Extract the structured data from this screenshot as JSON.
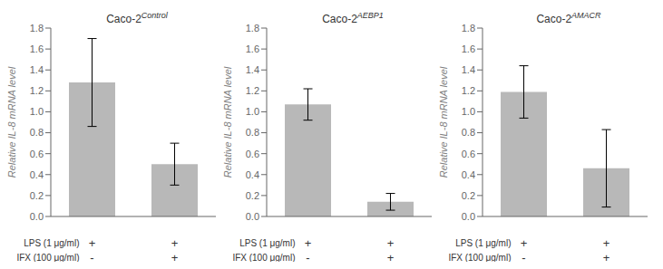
{
  "chart_data": [
    {
      "type": "bar",
      "title": "Caco-2",
      "title_superscript": "Control",
      "ylabel": "Relative IL-8 mRNA level",
      "categories": [
        null,
        null
      ],
      "values": [
        1.28,
        0.5
      ],
      "errors": [
        0.42,
        0.2
      ],
      "color": "#b8b8b8",
      "ylim": [
        0,
        1.8
      ],
      "yticks": [
        {
          "value": 0,
          "label": "0.0"
        },
        0.2,
        0.4,
        0.6,
        0.8,
        {
          "value": 1,
          "label": "1.0"
        },
        1.2,
        1.4,
        1.6,
        1.8
      ],
      "grid": false,
      "annotations": [
        {
          "label": "LPS (1 μg/ml)",
          "marks": [
            "+",
            "+"
          ]
        },
        {
          "label": "IFX (100 μg/ml)",
          "marks": [
            "-",
            "+"
          ]
        }
      ]
    },
    {
      "type": "bar",
      "title": "Caco-2",
      "title_superscript": "AEBP1",
      "ylabel": "Relative IL-8 mRNA level",
      "categories": [
        null,
        null
      ],
      "values": [
        1.07,
        0.14
      ],
      "errors": [
        0.15,
        0.08
      ],
      "color": "#b8b8b8",
      "ylim": [
        0,
        1.8
      ],
      "yticks": [
        {
          "value": 0,
          "label": "0.0"
        },
        0.2,
        0.4,
        0.6,
        0.8,
        {
          "value": 1,
          "label": "1.0"
        },
        1.2,
        1.4,
        1.6,
        1.8
      ],
      "grid": false,
      "annotations": [
        {
          "label": "LPS (1 μg/ml)",
          "marks": [
            "+",
            "+"
          ]
        },
        {
          "label": "IFX (100 μg/ml)",
          "marks": [
            "-",
            "+"
          ]
        }
      ]
    },
    {
      "type": "bar",
      "title": "Caco-2",
      "title_superscript": "AMACR",
      "ylabel": "Relative IL-8 mRNA level",
      "categories": [
        null,
        null
      ],
      "values": [
        1.19,
        0.46
      ],
      "errors": [
        0.25,
        0.37
      ],
      "color": "#b8b8b8",
      "ylim": [
        0,
        1.8
      ],
      "yticks": [
        {
          "value": 0,
          "label": "0.0"
        },
        0.2,
        0.4,
        0.6,
        0.8,
        {
          "value": 1,
          "label": "1.0"
        },
        1.2,
        1.4,
        1.6,
        1.8
      ],
      "grid": false,
      "annotations": [
        {
          "label": "LPS (1 μg/ml)",
          "marks": [
            "+",
            "+"
          ]
        },
        {
          "label": "IFX (100 μg/ml)",
          "marks": [
            "-",
            "+"
          ]
        }
      ]
    }
  ]
}
